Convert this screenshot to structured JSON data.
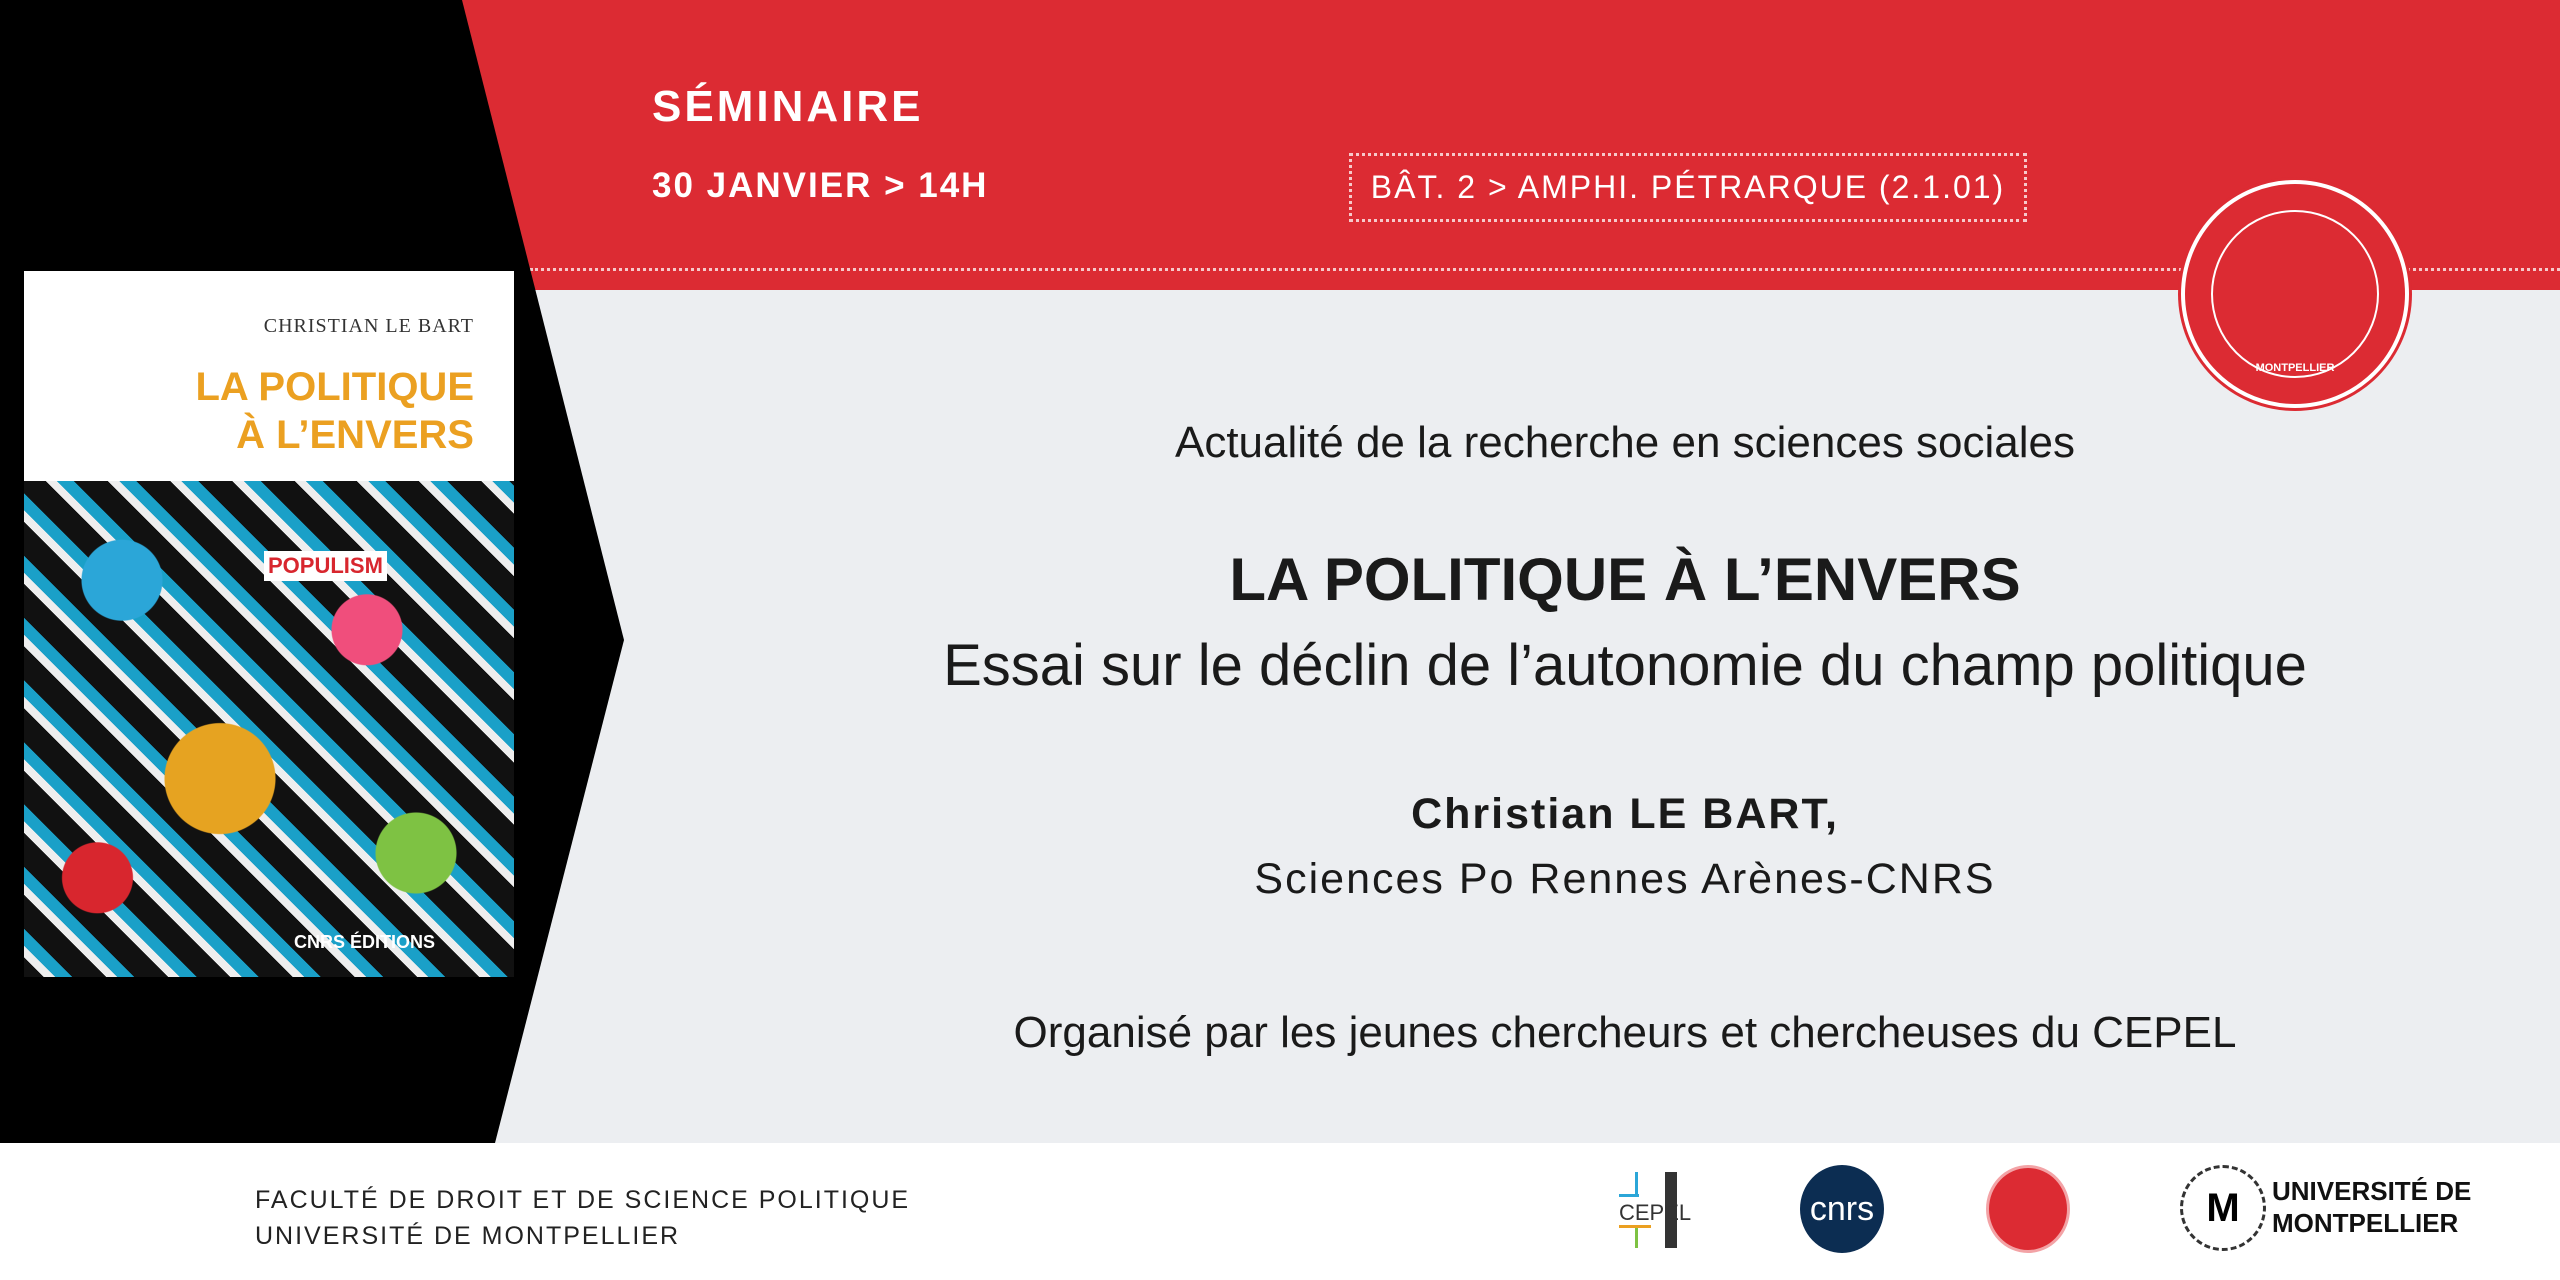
{
  "colors": {
    "accent": "#dc2b33",
    "background": "#eceef1",
    "book_title": "#eba021",
    "cnrs": "#0c2d52"
  },
  "header": {
    "event_type": "SÉMINAIRE",
    "date_time": "30 JANVIER > 14H",
    "location": "BÂT. 2 > AMPHI. PÉTRARQUE (2.1.01)"
  },
  "book": {
    "author": "CHRISTIAN LE BART",
    "title_line1": "LA POLITIQUE",
    "title_line2": "À L’ENVERS",
    "cover_word": "POPULISM",
    "publisher": "CNRS ÉDITIONS"
  },
  "main": {
    "series": "Actualité de la recherche en sciences sociales",
    "title": "LA POLITIQUE À L’ENVERS",
    "subtitle": "Essai sur le déclin de l’autonomie du champ politique",
    "speaker": "Christian LE BART,",
    "affiliation": "Sciences Po Rennes Arènes-CNRS",
    "organizer": "Organisé par les jeunes chercheurs et chercheuses du CEPEL"
  },
  "seal": {
    "text": "MONTPELLIER"
  },
  "footer": {
    "line1": "FACULTÉ DE DROIT ET DE SCIENCE POLITIQUE",
    "line2": "UNIVERSITÉ DE MONTPELLIER",
    "logos": {
      "cepel": "CEPEL",
      "cnrs": "cnrs",
      "um_line1": "UNIVERSITÉ DE",
      "um_line2": "MONTPELLIER"
    }
  }
}
